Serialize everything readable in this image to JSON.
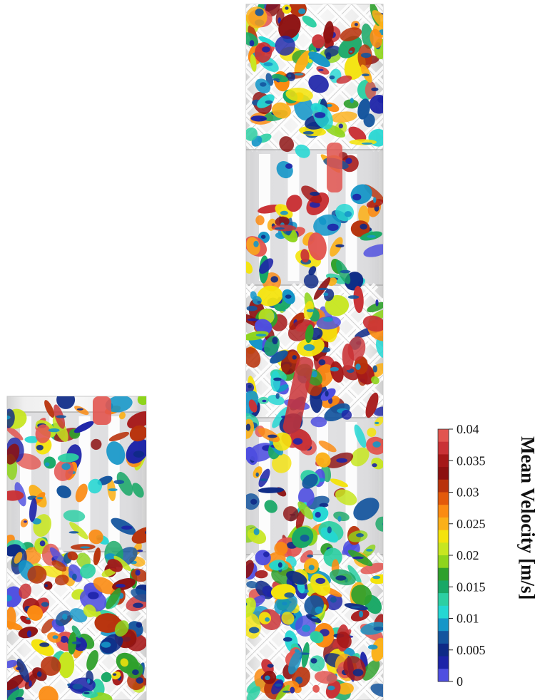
{
  "colorbar": {
    "title": "Mean Velocity [m/s]",
    "tick_labels": [
      "0.04",
      "0.035",
      "0.03",
      "0.025",
      "0.02",
      "0.015",
      "0.01",
      "0.005",
      "0"
    ],
    "range": [
      0,
      0.04
    ],
    "colors": [
      "#e25550",
      "#c93236",
      "#a51818",
      "#8c1010",
      "#b8330c",
      "#e35a0a",
      "#fb8b12",
      "#fbb018",
      "#f4e30c",
      "#c7e620",
      "#8ed41c",
      "#2fa02c",
      "#19a866",
      "#2dcfa3",
      "#24d7d3",
      "#1596c8",
      "#14559e",
      "#0e2a86",
      "#1d24a8",
      "#4f4fe0"
    ]
  },
  "visualization": {
    "left_column": "short structured packing column with mean-velocity isosurfaces",
    "right_column": "tall structured packing column with mean-velocity isosurfaces"
  }
}
